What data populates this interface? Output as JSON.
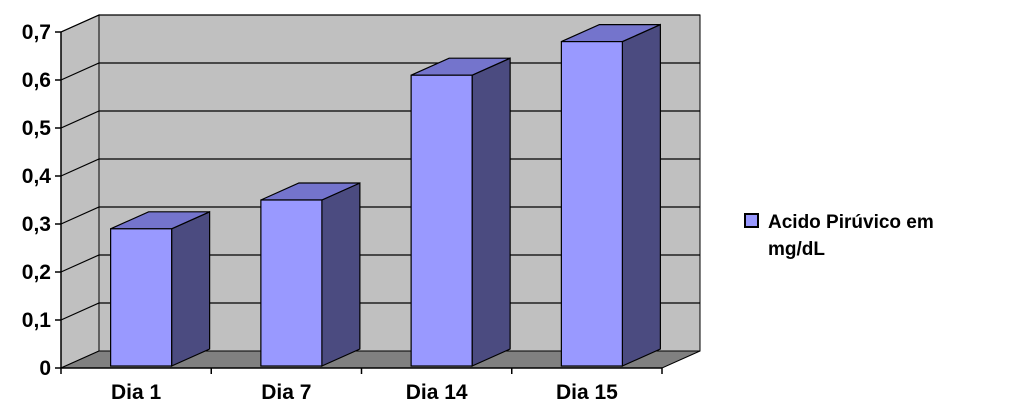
{
  "chart_data": {
    "type": "bar",
    "style": "3d-column",
    "categories": [
      "Dia 1",
      "Dia 7",
      "Dia 14",
      "Dia 15"
    ],
    "series": [
      {
        "name": "Acido Pirúvico em mg/dL",
        "values": [
          0.29,
          0.35,
          0.61,
          0.68
        ]
      }
    ],
    "ylim": [
      0,
      0.7
    ],
    "y_ticks": [
      "0",
      "0,1",
      "0,2",
      "0,3",
      "0,4",
      "0,5",
      "0,6",
      "0,7"
    ],
    "grid": true,
    "legend": {
      "position": "right",
      "lines": [
        "Acido Pirúvico em",
        "mg/dL"
      ]
    },
    "colors": {
      "bar_front": "#9999ff",
      "bar_side": "#4b4b80",
      "bar_top": "#7474cc",
      "wall": "#c0c0c0",
      "floor": "#808080"
    }
  }
}
